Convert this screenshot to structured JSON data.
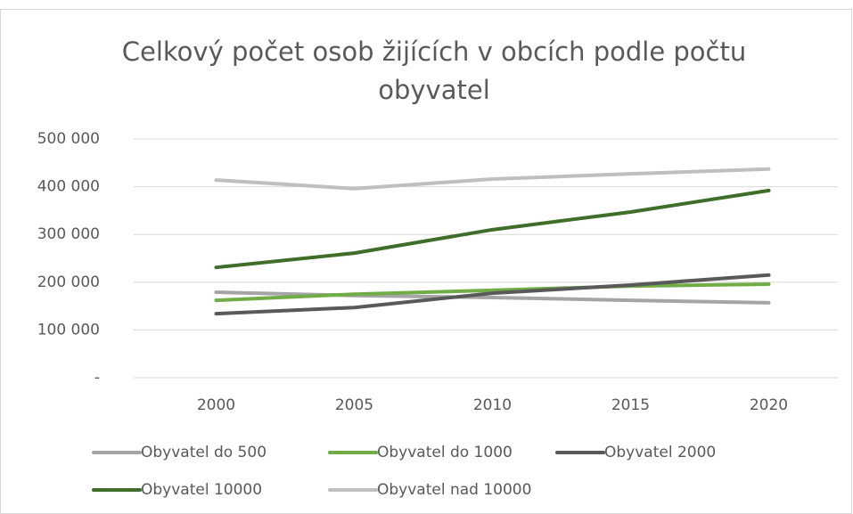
{
  "chart_data": {
    "type": "line",
    "title": [
      "Celkový počet osob žijících v obcích podle počtu",
      "obyvatel"
    ],
    "categories": [
      "2000",
      "2005",
      "2010",
      "2015",
      "2020"
    ],
    "series": [
      {
        "name": "Obyvatel do 500",
        "color": "#a5a5a5",
        "values": [
          179000,
          172000,
          168000,
          162000,
          157000
        ]
      },
      {
        "name": "Obyvatel do 1000",
        "color": "#70ad47",
        "values": [
          162000,
          175000,
          183000,
          192000,
          196000
        ]
      },
      {
        "name": "Obyvatel 2000",
        "color": "#595959",
        "values": [
          134000,
          147000,
          177000,
          194000,
          215000
        ]
      },
      {
        "name": "Obyvatel 10000",
        "color": "#3f6e2a",
        "values": [
          231000,
          261000,
          310000,
          347000,
          392000
        ]
      },
      {
        "name": "Obyvatel nad 10000",
        "color": "#bfbfbf",
        "values": [
          414000,
          396000,
          416000,
          427000,
          437000
        ]
      }
    ],
    "ylim": [
      0,
      500000
    ],
    "yticks": [
      {
        "value": 0,
        "label": "-"
      },
      {
        "value": 100000,
        "label": "100 000"
      },
      {
        "value": 200000,
        "label": "200 000"
      },
      {
        "value": 300000,
        "label": "300 000"
      },
      {
        "value": 400000,
        "label": "400 000"
      },
      {
        "value": 500000,
        "label": "500 000"
      }
    ],
    "grid": true
  }
}
